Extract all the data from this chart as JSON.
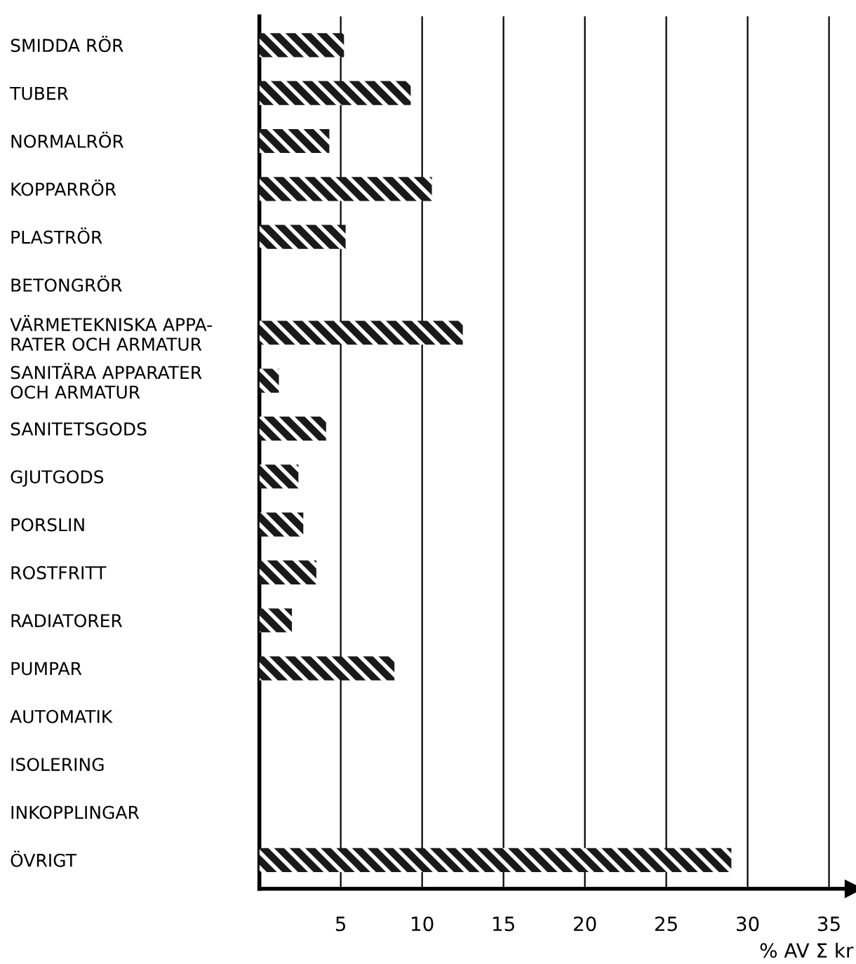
{
  "chart_data": {
    "type": "bar",
    "orientation": "horizontal",
    "categories": [
      "SMIDDA RÖR",
      "TUBER",
      "NORMALRÖR",
      "KOPPARRÖR",
      "PLASTRÖR",
      "BETONGRÖR",
      "VÄRMETEKNISKA APPA-\nRATER OCH ARMATUR",
      "SANITÄRA APPARATER\nOCH ARMATUR",
      "SANITETSGODS",
      "GJUTGODS",
      "PORSLIN",
      "ROSTFRITT",
      "RADIATORER",
      "PUMPAR",
      "AUTOMATIK",
      "ISOLERING",
      "INKOPPLINGAR",
      "ÖVRIGT"
    ],
    "values": [
      5.2,
      9.3,
      4.3,
      10.6,
      5.3,
      null,
      12.5,
      1.2,
      4.1,
      2.4,
      2.7,
      3.5,
      2.0,
      8.3,
      null,
      null,
      null,
      29.0
    ],
    "color": "#1a1a1a",
    "xlabel": "% AV Σ kr",
    "xlim": [
      0,
      36.5
    ],
    "xticks": [
      5,
      10,
      15,
      20,
      25,
      30,
      35
    ],
    "grid": "x"
  }
}
